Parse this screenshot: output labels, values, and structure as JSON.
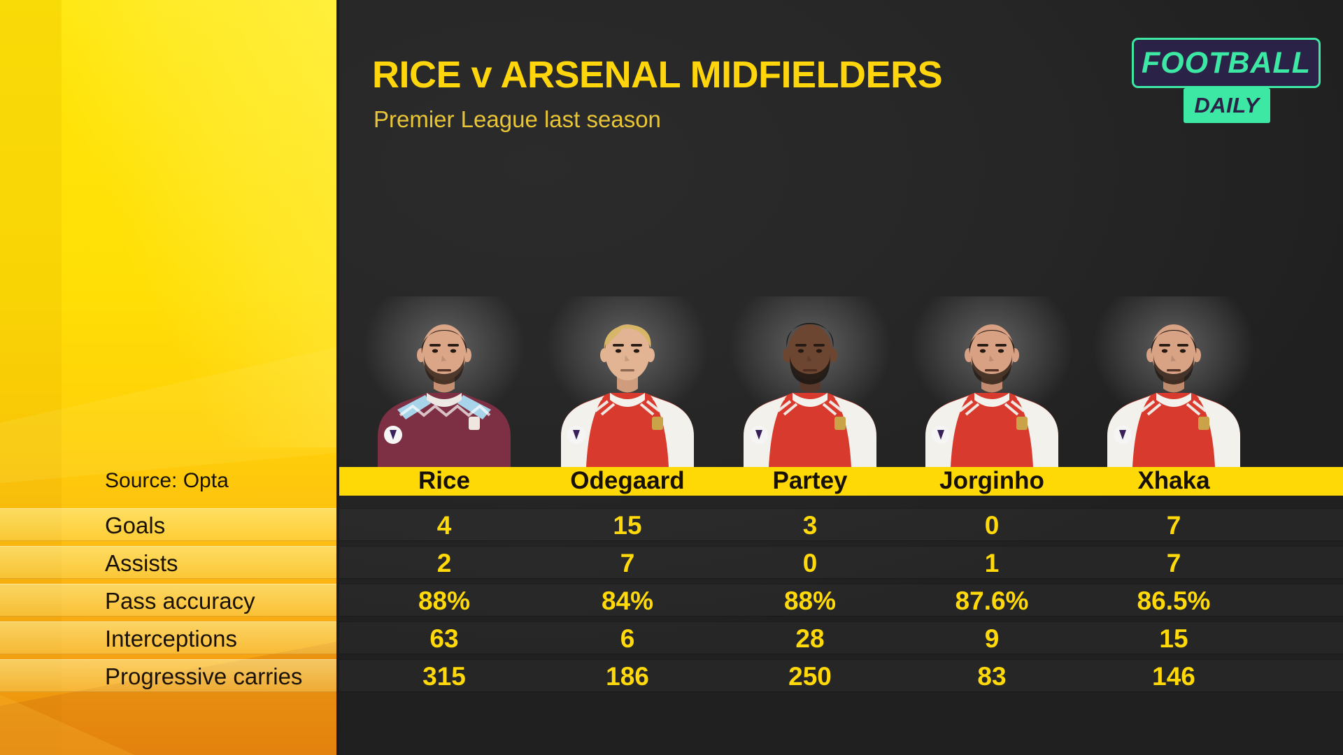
{
  "header": {
    "title": "RICE v ARSENAL MIDFIELDERS",
    "subtitle": "Premier League last season"
  },
  "logo": {
    "line1": "FOOTBALL",
    "line2": "DAILY"
  },
  "source_label": "Source: Opta",
  "chart_data": {
    "type": "table",
    "title": "RICE v ARSENAL MIDFIELDERS",
    "subtitle": "Premier League last season",
    "source": "Source: Opta",
    "columns": [
      "Rice",
      "Odegaard",
      "Partey",
      "Jorginho",
      "Xhaka"
    ],
    "rows": [
      {
        "label": "Goals",
        "values": [
          "4",
          "15",
          "3",
          "0",
          "7"
        ]
      },
      {
        "label": "Assists",
        "values": [
          "2",
          "7",
          "0",
          "1",
          "7"
        ]
      },
      {
        "label": "Pass accuracy",
        "values": [
          "88%",
          "84%",
          "88%",
          "87.6%",
          "86.5%"
        ]
      },
      {
        "label": "Interceptions",
        "values": [
          "63",
          "6",
          "28",
          "9",
          "15"
        ]
      },
      {
        "label": "Progressive carries",
        "values": [
          "315",
          "186",
          "250",
          "83",
          "146"
        ]
      }
    ]
  },
  "players": [
    {
      "name": "Rice",
      "team": "West Ham",
      "skin": "#dba688",
      "skinShade": "#c78f72",
      "hair": "#2a1d14",
      "beard": true,
      "hairStyle": "short",
      "kit": {
        "body": "#7d2f43",
        "sleeves": "#7d2f43",
        "shoulder": "#a7d4e9",
        "zigzag": true,
        "stripes": "",
        "collar": "#ece8e4",
        "crest": "#efe7df"
      }
    },
    {
      "name": "Odegaard",
      "team": "Arsenal",
      "skin": "#e3b493",
      "skinShade": "#cf9d7d",
      "hair": "#d8b667",
      "beard": false,
      "hairStyle": "swept",
      "kit": {
        "body": "#d83a2e",
        "sleeves": "#f3f1ec",
        "shoulder": "",
        "zigzag": false,
        "stripes": "#f3f1ec",
        "collar": "#f3f1ec",
        "crest": "#caa348"
      }
    },
    {
      "name": "Partey",
      "team": "Arsenal",
      "skin": "#6d4632",
      "skinShade": "#57382a",
      "hair": "#171310",
      "beard": true,
      "hairStyle": "afro",
      "kit": {
        "body": "#d83a2e",
        "sleeves": "#f3f1ec",
        "shoulder": "",
        "zigzag": false,
        "stripes": "#f3f1ec",
        "collar": "#f3f1ec",
        "crest": "#caa348"
      }
    },
    {
      "name": "Jorginho",
      "team": "Arsenal",
      "skin": "#d9a183",
      "skinShade": "#c28a6e",
      "hair": "#241911",
      "beard": true,
      "hairStyle": "short",
      "kit": {
        "body": "#d83a2e",
        "sleeves": "#f3f1ec",
        "shoulder": "",
        "zigzag": false,
        "stripes": "#f3f1ec",
        "collar": "#f3f1ec",
        "crest": "#caa348"
      }
    },
    {
      "name": "Xhaka",
      "team": "Arsenal",
      "skin": "#d8a284",
      "skinShade": "#c08a6c",
      "hair": "#201711",
      "beard": true,
      "hairStyle": "short",
      "kit": {
        "body": "#d83a2e",
        "sleeves": "#f3f1ec",
        "shoulder": "",
        "zigzag": false,
        "stripes": "#f3f1ec",
        "collar": "#f3f1ec",
        "crest": "#caa348"
      }
    }
  ],
  "colors": {
    "accent_yellow": "#ffd60c",
    "bar_yellow": "#ffd905",
    "value_yellow": "#ffd90a",
    "subtitle_gold": "#e8c537",
    "panel_top": "#ffe60a",
    "panel_bottom": "#ee8e10",
    "bg_dark": "#262626",
    "bg_dark_hi": "#2b2b2b",
    "logo_mint": "#3ce8a4",
    "logo_navy": "#2b2248"
  }
}
